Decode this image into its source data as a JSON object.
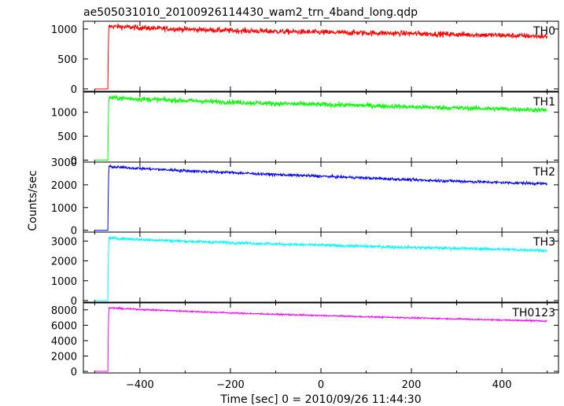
{
  "chart_data": {
    "type": "line",
    "title": "ae505031010_20100926114430_wam2_trn_4band_long.qdp",
    "xlabel": "Time [sec] 0 = 2010/09/26 11:44:30",
    "ylabel": "Counts/sec",
    "xlim": [
      -525,
      525
    ],
    "x_ticks": [
      -400,
      -200,
      0,
      200,
      400
    ],
    "x_tick_labels": [
      "−400",
      "−200",
      "0",
      "200",
      "400"
    ],
    "grid": false,
    "onset_time": -470,
    "series": [
      {
        "name": "TH0",
        "color": "#ff0000",
        "ylim": [
          -40,
          1130
        ],
        "y_ticks": [
          0,
          500,
          1000
        ],
        "y_tick_labels": [
          "0",
          "500",
          "1000"
        ],
        "baseline": 0,
        "peak": 1040,
        "end": 875,
        "noise": 45,
        "x": [
          -500,
          -471,
          -469,
          -460,
          -400,
          -300,
          -200,
          -100,
          0,
          100,
          200,
          300,
          400,
          500
        ],
        "y": [
          0,
          0,
          1040,
          1045,
          1020,
          995,
          975,
          960,
          945,
          935,
          925,
          910,
          895,
          875
        ]
      },
      {
        "name": "TH1",
        "color": "#00ff00",
        "ylim": [
          -40,
          1420
        ],
        "y_ticks": [
          0,
          500,
          1000
        ],
        "y_tick_labels": [
          "0",
          "500",
          "1000"
        ],
        "baseline": 0,
        "peak": 1300,
        "end": 1040,
        "noise": 50,
        "x": [
          -500,
          -471,
          -469,
          -460,
          -400,
          -300,
          -200,
          -100,
          0,
          100,
          200,
          300,
          400,
          500
        ],
        "y": [
          0,
          0,
          1300,
          1300,
          1275,
          1240,
          1210,
          1180,
          1160,
          1140,
          1110,
          1090,
          1070,
          1040
        ]
      },
      {
        "name": "TH2",
        "color": "#0000ff",
        "ylim": [
          -80,
          3000
        ],
        "y_ticks": [
          0,
          1000,
          2000,
          3000
        ],
        "y_tick_labels": [
          "0",
          "1000",
          "2000",
          "3000"
        ],
        "baseline": 0,
        "peak": 2800,
        "end": 2050,
        "noise": 60,
        "x": [
          -500,
          -471,
          -469,
          -460,
          -400,
          -300,
          -200,
          -100,
          0,
          100,
          200,
          300,
          400,
          500
        ],
        "y": [
          0,
          0,
          2800,
          2790,
          2720,
          2620,
          2540,
          2450,
          2380,
          2300,
          2220,
          2160,
          2100,
          2050
        ]
      },
      {
        "name": "TH3",
        "color": "#00ffff",
        "ylim": [
          -80,
          3450
        ],
        "y_ticks": [
          0,
          1000,
          2000,
          3000
        ],
        "y_tick_labels": [
          "0",
          "1000",
          "2000",
          "3000"
        ],
        "baseline": 0,
        "peak": 3150,
        "end": 2520,
        "noise": 70,
        "x": [
          -500,
          -471,
          -469,
          -460,
          -400,
          -300,
          -200,
          -100,
          0,
          100,
          200,
          300,
          400,
          500
        ],
        "y": [
          0,
          0,
          3150,
          3140,
          3080,
          2990,
          2920,
          2850,
          2790,
          2730,
          2680,
          2630,
          2580,
          2520
        ]
      },
      {
        "name": "TH0123",
        "color": "#ff00ff",
        "ylim": [
          -200,
          8900
        ],
        "y_ticks": [
          0,
          2000,
          4000,
          6000,
          8000
        ],
        "y_tick_labels": [
          "0",
          "2000",
          "4000",
          "6000",
          "8000"
        ],
        "baseline": 0,
        "peak": 8250,
        "end": 6550,
        "noise": 90,
        "x": [
          -500,
          -471,
          -469,
          -460,
          -400,
          -300,
          -200,
          -100,
          0,
          100,
          200,
          300,
          400,
          500
        ],
        "y": [
          0,
          0,
          8250,
          8230,
          8050,
          7820,
          7600,
          7420,
          7260,
          7100,
          6960,
          6820,
          6680,
          6550
        ]
      }
    ]
  }
}
